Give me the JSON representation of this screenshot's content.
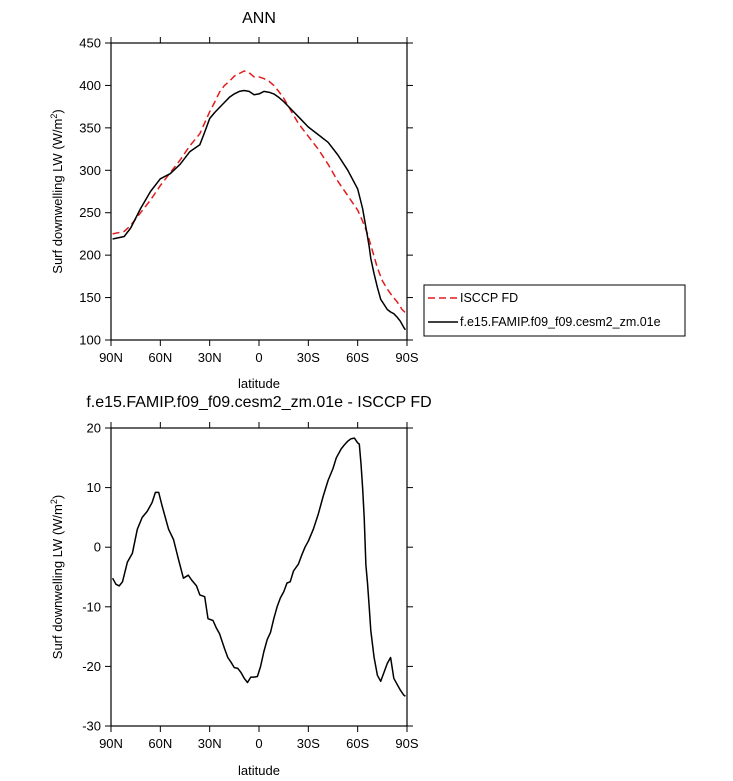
{
  "chart_data": [
    {
      "type": "line",
      "title": "ANN",
      "xlabel": "latitude",
      "ylabel": "Surf downwelling LW (W/m",
      "ylabel_sup": "2",
      "ylabel_close": ")",
      "xlim": [
        -90,
        90
      ],
      "ylim": [
        100,
        450
      ],
      "x_ticks": [
        -90,
        -60,
        -30,
        0,
        30,
        60,
        90
      ],
      "x_tick_labels": [
        "90N",
        "60N",
        "30N",
        "0",
        "30S",
        "60S",
        "90S"
      ],
      "y_ticks": [
        100,
        150,
        200,
        250,
        300,
        350,
        400,
        450
      ],
      "y_tick_labels": [
        "100",
        "150",
        "200",
        "250",
        "300",
        "350",
        "400",
        "450"
      ],
      "grid": false,
      "legend_position": "right",
      "series": [
        {
          "name": "ISCCP FD",
          "color": "#e41a1c",
          "dash": "dashed",
          "x": [
            -89,
            -82,
            -78,
            -72,
            -66,
            -60,
            -54,
            -48,
            -42,
            -36,
            -30,
            -27,
            -24,
            -21,
            -18,
            -15,
            -12,
            -9,
            -6,
            -3,
            0,
            3,
            6,
            9,
            12,
            15,
            18,
            21,
            24,
            30,
            36,
            42,
            48,
            54,
            60,
            63,
            66,
            69,
            72,
            75,
            78,
            81,
            84,
            87,
            89
          ],
          "y": [
            225,
            228,
            235,
            250,
            265,
            282,
            297,
            312,
            329,
            343,
            369,
            380,
            392,
            400,
            405,
            411,
            414,
            417,
            415,
            410,
            410,
            408,
            405,
            400,
            393,
            385,
            375,
            365,
            355,
            340,
            325,
            307,
            287,
            270,
            253,
            240,
            225,
            205,
            185,
            170,
            160,
            152,
            145,
            136,
            132
          ]
        },
        {
          "name": "f.e15.FAMIP.f09_f09.cesm2_zm.01e",
          "color": "#000000",
          "dash": "solid",
          "x": [
            -89,
            -82,
            -78,
            -72,
            -66,
            -60,
            -54,
            -48,
            -42,
            -36,
            -33,
            -30,
            -27,
            -24,
            -21,
            -18,
            -15,
            -12,
            -9,
            -6,
            -3,
            0,
            3,
            6,
            9,
            12,
            15,
            18,
            24,
            30,
            36,
            42,
            48,
            54,
            60,
            63,
            66,
            67,
            68,
            70,
            72,
            74,
            76,
            78,
            80,
            82,
            84,
            86,
            88,
            89
          ],
          "y": [
            219,
            222,
            232,
            255,
            275,
            290,
            296,
            307,
            322,
            330,
            345,
            361,
            368,
            374,
            380,
            386,
            390,
            393,
            394,
            393,
            389,
            390,
            393,
            392,
            390,
            386,
            381,
            375,
            363,
            351,
            342,
            333,
            318,
            300,
            278,
            255,
            222,
            210,
            196,
            178,
            162,
            148,
            142,
            136,
            133,
            131,
            127,
            122,
            115,
            112
          ]
        }
      ]
    },
    {
      "type": "line",
      "title": "f.e15.FAMIP.f09_f09.cesm2_zm.01e - ISCCP FD",
      "xlabel": "latitude",
      "ylabel": "Surf downwelling LW (W/m",
      "ylabel_sup": "2",
      "ylabel_close": ")",
      "xlim": [
        -90,
        90
      ],
      "ylim": [
        -30,
        20
      ],
      "x_ticks": [
        -90,
        -60,
        -30,
        0,
        30,
        60,
        90
      ],
      "x_tick_labels": [
        "90N",
        "60N",
        "30N",
        "0",
        "30S",
        "60S",
        "90S"
      ],
      "y_ticks": [
        -30,
        -20,
        -10,
        0,
        10,
        20
      ],
      "y_tick_labels": [
        "-30",
        "-20",
        "-10",
        "0",
        "10",
        "20"
      ],
      "grid": false,
      "series": [
        {
          "color": "#000000",
          "dash": "solid",
          "x": [
            -89,
            -87,
            -85,
            -83,
            -80,
            -77,
            -74,
            -71,
            -68,
            -65,
            -63,
            -61,
            -59,
            -57,
            -55,
            -52,
            -49,
            -46,
            -43,
            -41,
            -38,
            -36,
            -33,
            -31,
            -28,
            -26,
            -24,
            -21,
            -19,
            -17,
            -15,
            -13,
            -11,
            -9,
            -7,
            -5,
            -3,
            -1,
            1,
            3,
            5,
            7,
            9,
            11,
            13,
            15,
            17,
            19,
            21,
            24,
            26,
            28,
            30,
            33,
            36,
            39,
            42,
            45,
            47,
            50,
            52,
            54,
            56,
            58,
            60,
            61,
            62,
            63,
            64,
            65,
            66,
            67,
            68,
            70,
            72,
            74,
            76,
            78,
            80,
            82,
            84,
            86,
            88,
            89
          ],
          "y": [
            -5.2,
            -6.2,
            -6.5,
            -5.8,
            -2.5,
            -1.0,
            3.0,
            5.0,
            6.0,
            7.5,
            9.2,
            9.2,
            7.0,
            5.0,
            3.0,
            1.3,
            -2.0,
            -5.2,
            -4.7,
            -5.5,
            -6.5,
            -8.0,
            -8.3,
            -12.0,
            -12.3,
            -13.5,
            -14.5,
            -17.0,
            -18.5,
            -19.3,
            -20.2,
            -20.3,
            -21.0,
            -22.0,
            -22.7,
            -21.8,
            -21.8,
            -21.7,
            -20.0,
            -17.5,
            -15.5,
            -14.3,
            -12.0,
            -10.0,
            -8.5,
            -7.5,
            -6.0,
            -5.8,
            -4.0,
            -2.8,
            -1.3,
            0.0,
            1.0,
            3.0,
            5.5,
            8.5,
            11.2,
            13.2,
            15.0,
            16.5,
            17.2,
            17.8,
            18.2,
            18.3,
            17.5,
            17.3,
            14.0,
            10.0,
            5.0,
            -3.0,
            -6.0,
            -10.0,
            -14.0,
            -18.5,
            -21.5,
            -22.5,
            -21.0,
            -19.5,
            -18.5,
            -22.0,
            -23.0,
            -24.0,
            -24.8,
            -25.0
          ]
        }
      ]
    }
  ]
}
